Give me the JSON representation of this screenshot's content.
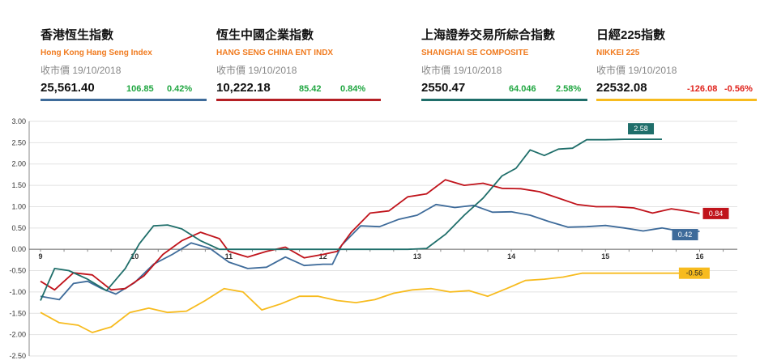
{
  "indices": [
    {
      "title": "香港恆生指數",
      "subtitle": "Hong Kong Hang Seng Index",
      "date": "收市價 19/10/2018",
      "value": "25,561.40",
      "change": "106.85",
      "pct": "0.42%",
      "direction": "up",
      "color": "#3e6b9a"
    },
    {
      "title": "恆生中國企業指數",
      "subtitle": "HANG SENG CHINA ENT INDX",
      "date": "收市價 19/10/2018",
      "value": "10,222.18",
      "change": "85.42",
      "pct": "0.84%",
      "direction": "up",
      "color": "#b51f24"
    },
    {
      "title": "上海證券交易所綜合指數",
      "subtitle": "SHANGHAI SE COMPOSITE",
      "date": "收市價 19/10/2018",
      "value": "2550.47",
      "change": "64.046",
      "pct": "2.58%",
      "direction": "up",
      "color": "#1f6e6a"
    },
    {
      "title": "日經225指數",
      "subtitle": "NIKKEI 225",
      "date": "收市價 19/10/2018",
      "value": "22532.08",
      "change": "-126.08",
      "pct": "-0.56%",
      "direction": "down",
      "color": "#f7bb1e"
    }
  ],
  "chart_data": {
    "type": "line",
    "ylim": [
      -2.5,
      3.0
    ],
    "yticks": [
      "3.00",
      "2.50",
      "2.00",
      "1.50",
      "1.00",
      "0.50",
      "0.00",
      "-0.50",
      "-1.00",
      "-1.50",
      "-2.00",
      "-2.50"
    ],
    "xlim": [
      9,
      16.4
    ],
    "xticks": [
      "9",
      "10",
      "11",
      "12",
      "13",
      "14",
      "15",
      "16"
    ],
    "grid": true,
    "series": [
      {
        "color": "#3e6b9a",
        "end_label": "0.42",
        "x": [
          9,
          9.2,
          9.35,
          9.5,
          9.65,
          9.8,
          10,
          10.2,
          10.4,
          10.6,
          10.8,
          11,
          11.2,
          11.4,
          11.6,
          11.8,
          12,
          12.1,
          12.2,
          12.4,
          12.6,
          12.8,
          13,
          13.2,
          13.4,
          13.6,
          13.8,
          14,
          14.2,
          14.4,
          14.6,
          14.8,
          15,
          15.2,
          15.4,
          15.6,
          15.8,
          16
        ],
        "y": [
          -1.1,
          -1.18,
          -0.8,
          -0.75,
          -0.92,
          -1.05,
          -0.78,
          -0.35,
          -0.12,
          0.15,
          0.02,
          -0.3,
          -0.45,
          -0.42,
          -0.18,
          -0.38,
          -0.35,
          -0.35,
          0.1,
          0.55,
          0.53,
          0.7,
          0.8,
          1.05,
          0.98,
          1.03,
          0.87,
          0.88,
          0.8,
          0.65,
          0.52,
          0.53,
          0.56,
          0.5,
          0.43,
          0.5,
          0.42,
          0.42
        ]
      },
      {
        "color": "#c0131b",
        "end_label": "0.84",
        "x": [
          9,
          9.15,
          9.35,
          9.55,
          9.75,
          9.9,
          10.1,
          10.3,
          10.5,
          10.7,
          10.9,
          11,
          11.2,
          11.4,
          11.6,
          11.8,
          12,
          12.15,
          12.3,
          12.5,
          12.7,
          12.9,
          13.1,
          13.3,
          13.5,
          13.7,
          13.9,
          14.1,
          14.3,
          14.5,
          14.7,
          14.9,
          15.1,
          15.3,
          15.5,
          15.7,
          15.85,
          16
        ],
        "y": [
          -0.75,
          -0.95,
          -0.55,
          -0.6,
          -0.95,
          -0.92,
          -0.62,
          -0.12,
          0.2,
          0.4,
          0.25,
          -0.05,
          -0.18,
          -0.05,
          0.05,
          -0.2,
          -0.12,
          -0.05,
          0.4,
          0.85,
          0.9,
          1.23,
          1.3,
          1.63,
          1.5,
          1.55,
          1.43,
          1.42,
          1.35,
          1.2,
          1.05,
          1.0,
          1.0,
          0.97,
          0.85,
          0.95,
          0.9,
          0.84
        ]
      },
      {
        "color": "#1f6e6a",
        "end_label": "2.58",
        "x": [
          9,
          9.15,
          9.3,
          9.5,
          9.7,
          9.9,
          10.05,
          10.2,
          10.35,
          10.5,
          10.7,
          10.9,
          11.1,
          11.3,
          11.5,
          11.7,
          11.9,
          12.1,
          12.3,
          12.5,
          12.7,
          12.9,
          13.1,
          13.3,
          13.5,
          13.7,
          13.9,
          14.05,
          14.2,
          14.35,
          14.5,
          14.65,
          14.8,
          15,
          15.2,
          15.4,
          15.6
        ],
        "y": [
          -1.2,
          -0.45,
          -0.5,
          -0.7,
          -0.97,
          -0.45,
          0.13,
          0.55,
          0.57,
          0.48,
          0.2,
          0.0,
          0.0,
          0.0,
          0.0,
          0.0,
          0.0,
          0.0,
          0.0,
          0.0,
          0.0,
          0.0,
          0.02,
          0.35,
          0.8,
          1.2,
          1.72,
          1.9,
          2.33,
          2.2,
          2.35,
          2.37,
          2.57,
          2.57,
          2.58,
          2.58,
          2.58
        ]
      },
      {
        "color": "#f7bb1e",
        "end_label": "-0.56",
        "x": [
          9,
          9.2,
          9.4,
          9.55,
          9.75,
          9.95,
          10.15,
          10.35,
          10.55,
          10.75,
          10.95,
          11.15,
          11.35,
          11.55,
          11.75,
          11.95,
          12.15,
          12.35,
          12.55,
          12.75,
          12.95,
          13.15,
          13.35,
          13.55,
          13.75,
          13.95,
          14.15,
          14.35,
          14.55,
          14.75,
          14.95,
          15.15,
          15.35,
          15.55,
          15.75,
          15.9
        ],
        "y": [
          -1.48,
          -1.72,
          -1.78,
          -1.95,
          -1.82,
          -1.48,
          -1.38,
          -1.48,
          -1.45,
          -1.2,
          -0.92,
          -1.0,
          -1.42,
          -1.28,
          -1.1,
          -1.1,
          -1.2,
          -1.25,
          -1.18,
          -1.03,
          -0.95,
          -0.92,
          -1.0,
          -0.97,
          -1.1,
          -0.92,
          -0.73,
          -0.7,
          -0.65,
          -0.56,
          -0.56,
          -0.56,
          -0.56,
          -0.56,
          -0.56,
          -0.56
        ]
      }
    ]
  }
}
